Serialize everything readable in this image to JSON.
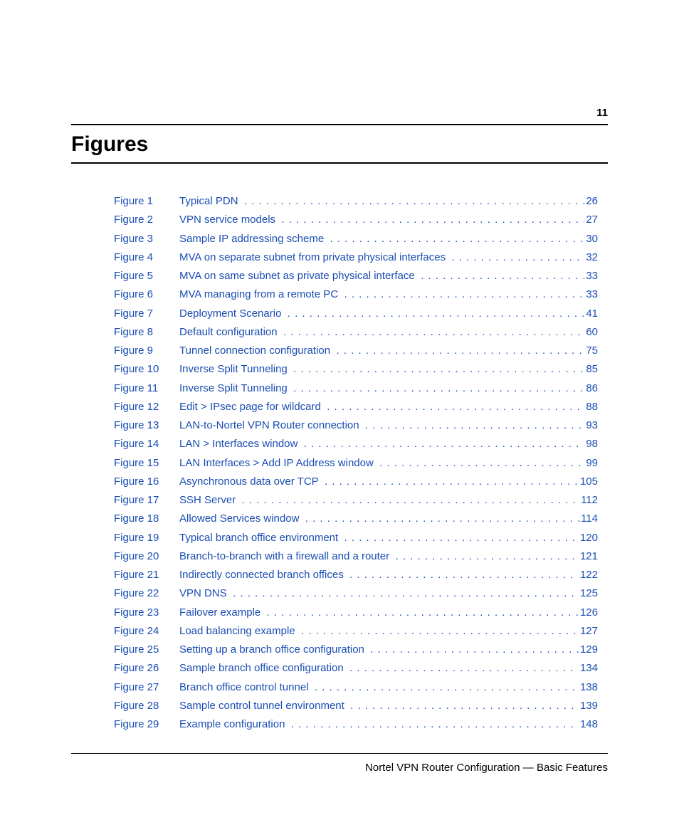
{
  "page_number": "11",
  "heading": "Figures",
  "footer": "Nortel VPN Router Configuration — Basic Features",
  "link_color": "#1a4db3",
  "text_color": "#000000",
  "background_color": "#ffffff",
  "heading_fontsize": 30,
  "body_fontsize": 15,
  "entries": [
    {
      "label": "Figure 1",
      "title": "Typical PDN",
      "page": "26"
    },
    {
      "label": "Figure 2",
      "title": "VPN service models",
      "page": "27"
    },
    {
      "label": "Figure 3",
      "title": "Sample IP addressing scheme",
      "page": "30"
    },
    {
      "label": "Figure 4",
      "title": "MVA on separate subnet from private physical interfaces",
      "page": "32"
    },
    {
      "label": "Figure 5",
      "title": "MVA on same subnet as private physical interface",
      "page": "33"
    },
    {
      "label": "Figure 6",
      "title": "MVA managing from a remote PC",
      "page": "33"
    },
    {
      "label": "Figure 7",
      "title": "Deployment Scenario",
      "page": "41"
    },
    {
      "label": "Figure 8",
      "title": "Default configuration",
      "page": "60"
    },
    {
      "label": "Figure 9",
      "title": "Tunnel connection configuration",
      "page": "75"
    },
    {
      "label": "Figure 10",
      "title": "Inverse Split Tunneling",
      "page": "85"
    },
    {
      "label": "Figure 11",
      "title": "Inverse Split Tunneling",
      "page": "86"
    },
    {
      "label": "Figure 12",
      "title": "Edit > IPsec page for wildcard",
      "page": "88"
    },
    {
      "label": "Figure 13",
      "title": "LAN-to-Nortel VPN Router connection",
      "page": "93"
    },
    {
      "label": "Figure 14",
      "title": "LAN > Interfaces window",
      "page": "98"
    },
    {
      "label": "Figure 15",
      "title": "LAN Interfaces > Add IP Address window",
      "page": "99"
    },
    {
      "label": "Figure 16",
      "title": "Asynchronous data over TCP",
      "page": "105"
    },
    {
      "label": "Figure 17",
      "title": "SSH Server",
      "page": "112"
    },
    {
      "label": "Figure 18",
      "title": "Allowed Services window",
      "page": "114"
    },
    {
      "label": "Figure 19",
      "title": "Typical branch office environment",
      "page": "120"
    },
    {
      "label": "Figure 20",
      "title": "Branch-to-branch with a firewall and a router",
      "page": "121"
    },
    {
      "label": "Figure 21",
      "title": "Indirectly connected branch offices",
      "page": "122"
    },
    {
      "label": "Figure 22",
      "title": "VPN DNS",
      "page": "125"
    },
    {
      "label": "Figure 23",
      "title": "Failover example",
      "page": "126"
    },
    {
      "label": "Figure 24",
      "title": "Load balancing example",
      "page": "127"
    },
    {
      "label": "Figure 25",
      "title": "Setting up a branch office configuration",
      "page": "129"
    },
    {
      "label": "Figure 26",
      "title": "Sample branch office configuration",
      "page": "134"
    },
    {
      "label": "Figure 27",
      "title": "Branch office control tunnel",
      "page": "138"
    },
    {
      "label": "Figure 28",
      "title": "Sample control tunnel environment",
      "page": "139"
    },
    {
      "label": "Figure 29",
      "title": "Example configuration",
      "page": "148"
    }
  ]
}
